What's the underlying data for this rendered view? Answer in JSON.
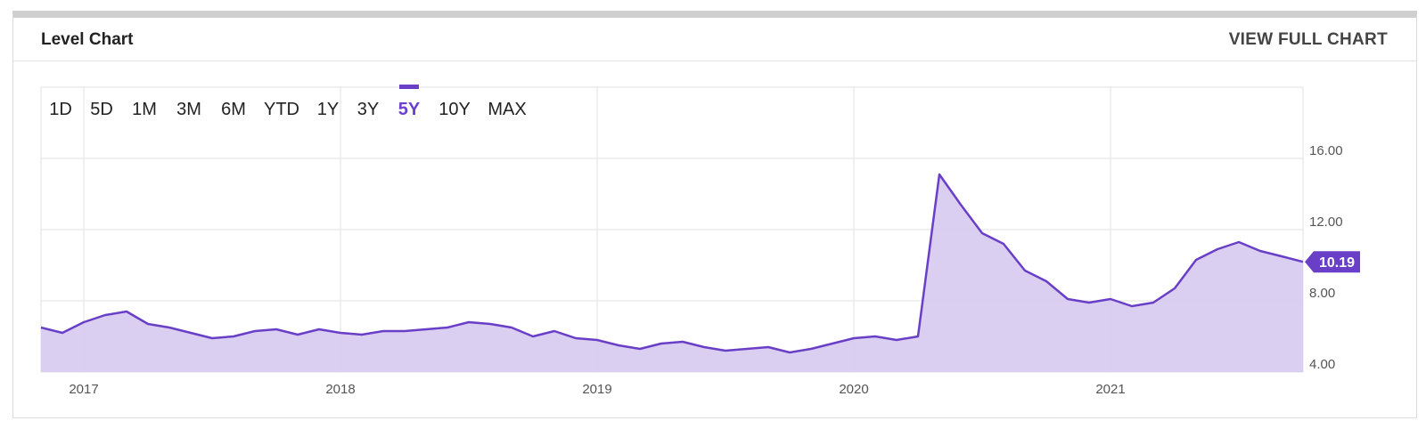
{
  "header": {
    "title": "Level Chart",
    "full_chart_label": "VIEW FULL CHART"
  },
  "ranges": [
    "1D",
    "5D",
    "1M",
    "3M",
    "6M",
    "YTD",
    "1Y",
    "3Y",
    "5Y",
    "10Y",
    "MAX"
  ],
  "active_range": "5Y",
  "colors": {
    "line": "#6a3fc8",
    "fill": "#d9ccf0",
    "badge": "#6a3fc8",
    "grid": "#e2e2e2"
  },
  "chart_data": {
    "type": "area",
    "title": "Level Chart",
    "xlabel": "",
    "ylabel": "",
    "x_ticks": [
      "2017",
      "2018",
      "2019",
      "2020",
      "2021"
    ],
    "y_ticks": [
      "4.00",
      "8.00",
      "12.00",
      "16.00"
    ],
    "ylim": [
      4,
      20
    ],
    "xlim": [
      "2016-11",
      "2021-10"
    ],
    "grid": true,
    "last_value_label": "10.19",
    "x": [
      "2016-11",
      "2016-12",
      "2017-01",
      "2017-02",
      "2017-03",
      "2017-04",
      "2017-05",
      "2017-06",
      "2017-07",
      "2017-08",
      "2017-09",
      "2017-10",
      "2017-11",
      "2017-12",
      "2018-01",
      "2018-02",
      "2018-03",
      "2018-04",
      "2018-05",
      "2018-06",
      "2018-07",
      "2018-08",
      "2018-09",
      "2018-10",
      "2018-11",
      "2018-12",
      "2019-01",
      "2019-02",
      "2019-03",
      "2019-04",
      "2019-05",
      "2019-06",
      "2019-07",
      "2019-08",
      "2019-09",
      "2019-10",
      "2019-11",
      "2019-12",
      "2020-01",
      "2020-02",
      "2020-03",
      "2020-04",
      "2020-05",
      "2020-06",
      "2020-07",
      "2020-08",
      "2020-09",
      "2020-10",
      "2020-11",
      "2020-12",
      "2021-01",
      "2021-02",
      "2021-03",
      "2021-04",
      "2021-05",
      "2021-06",
      "2021-07",
      "2021-08",
      "2021-09",
      "2021-10"
    ],
    "series": [
      {
        "values": [
          6.5,
          6.2,
          6.8,
          7.2,
          7.4,
          6.7,
          6.5,
          6.2,
          5.9,
          6.0,
          6.3,
          6.4,
          6.1,
          6.4,
          6.2,
          6.1,
          6.3,
          6.3,
          6.4,
          6.5,
          6.8,
          6.7,
          6.5,
          6.0,
          6.3,
          5.9,
          5.8,
          5.5,
          5.3,
          5.6,
          5.7,
          5.4,
          5.2,
          5.3,
          5.4,
          5.1,
          5.3,
          5.6,
          5.9,
          6.0,
          5.8,
          6.0,
          15.1,
          13.4,
          11.8,
          11.2,
          9.7,
          9.1,
          8.1,
          7.9,
          8.1,
          7.7,
          7.9,
          8.7,
          10.3,
          10.9,
          11.3,
          10.8,
          10.5,
          10.19
        ]
      }
    ]
  }
}
